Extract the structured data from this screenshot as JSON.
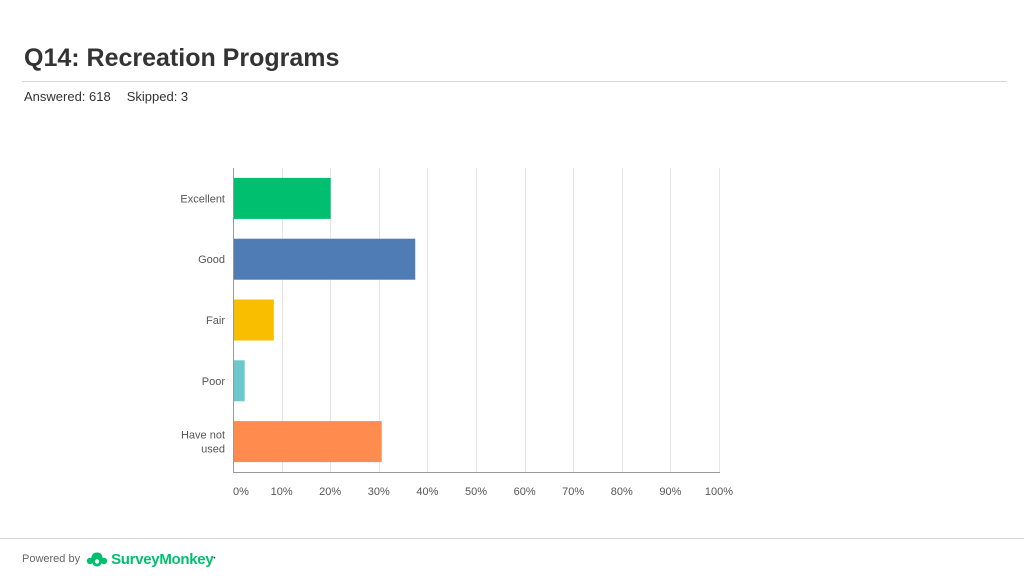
{
  "page": {
    "title": "Q14: Recreation Programs",
    "answered": "Answered: 618",
    "skipped": "Skipped: 3"
  },
  "footer": {
    "powered_by": "Powered by",
    "brand": "SurveyMonkey",
    "brand_color": "#00bf6f",
    "logo_icon": "surveymonkey-logo-icon"
  },
  "chart_data": {
    "type": "bar",
    "orientation": "horizontal",
    "categories": [
      "Excellent",
      "Good",
      "Fair",
      "Poor",
      "Have not used"
    ],
    "values": [
      20.1,
      37.5,
      8.4,
      2.4,
      30.6
    ],
    "colors": [
      "#00bf6f",
      "#507cb6",
      "#f9be00",
      "#6bc8cd",
      "#ff8b4f"
    ],
    "xlim": [
      0,
      100
    ],
    "xticks": [
      "0%",
      "10%",
      "20%",
      "30%",
      "40%",
      "50%",
      "60%",
      "70%",
      "80%",
      "90%",
      "100%"
    ],
    "grid": true,
    "title": "",
    "xlabel": "",
    "ylabel": ""
  }
}
